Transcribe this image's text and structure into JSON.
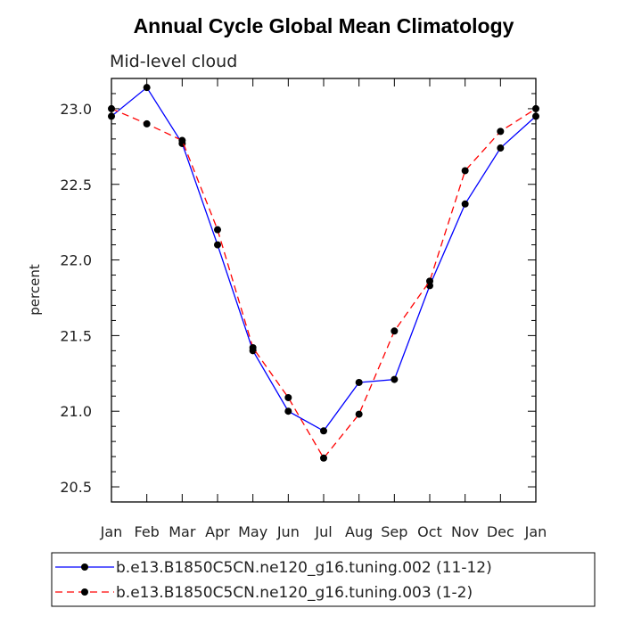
{
  "chart_data": {
    "type": "line",
    "title": "Annual Cycle Global Mean Climatology",
    "subtitle": "Mid-level cloud",
    "ylabel": "percent",
    "xlabel": "",
    "categories": [
      "Jan",
      "Feb",
      "Mar",
      "Apr",
      "May",
      "Jun",
      "Jul",
      "Aug",
      "Sep",
      "Oct",
      "Nov",
      "Dec",
      "Jan"
    ],
    "ylim": [
      20.4,
      23.2
    ],
    "yticks": [
      "20.5",
      "21.0",
      "21.5",
      "22.0",
      "22.5",
      "23.0"
    ],
    "ytick_values": [
      20.5,
      21.0,
      21.5,
      22.0,
      22.5,
      23.0
    ],
    "series": [
      {
        "name": "b.e13.B1850C5CN.ne120_g16.tuning.002 (11-12)",
        "color": "#0000ff",
        "dash": "solid",
        "values": [
          22.95,
          23.14,
          22.77,
          22.1,
          21.4,
          21.0,
          20.87,
          21.19,
          21.21,
          21.83,
          22.37,
          22.74,
          22.95
        ]
      },
      {
        "name": "b.e13.B1850C5CN.ne120_g16.tuning.003 (1-2)",
        "color": "#ff0000",
        "dash": "dashed",
        "values": [
          23.0,
          22.9,
          22.79,
          22.2,
          21.42,
          21.09,
          20.69,
          20.98,
          21.53,
          21.86,
          22.59,
          22.85,
          23.0
        ]
      }
    ]
  }
}
